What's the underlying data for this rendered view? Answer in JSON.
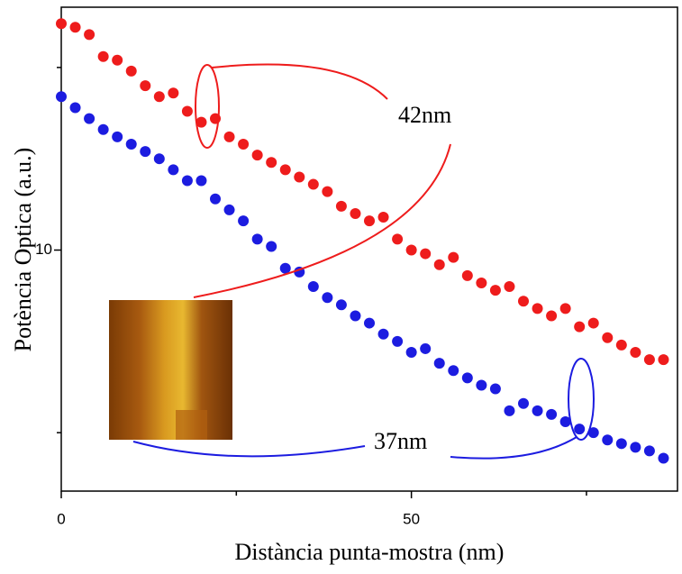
{
  "chart_data": {
    "type": "scatter",
    "xlabel": "Distància punta-mostra (nm)",
    "ylabel": "Potència Optica (a.u.)",
    "xlim": [
      0,
      88
    ],
    "xticks": [
      0,
      50
    ],
    "xminor_ticks": [
      25,
      75
    ],
    "ylim": [
      3.4,
      16.65
    ],
    "yticks": [
      10
    ],
    "yminor_ticks": [
      5,
      15
    ],
    "annotations": [
      "42nm",
      "37nm"
    ],
    "series": [
      {
        "name": "42nm",
        "color": "#ee1c1c",
        "x": [
          0,
          2,
          4,
          6,
          8,
          10,
          12,
          14,
          16,
          18,
          20,
          22,
          24,
          26,
          28,
          30,
          32,
          34,
          36,
          38,
          40,
          42,
          44,
          46,
          48,
          50,
          52,
          54,
          56,
          58,
          60,
          62,
          64,
          66,
          68,
          70,
          72,
          74,
          76,
          78,
          80,
          82,
          84,
          86
        ],
        "values": [
          16.2,
          16.1,
          15.9,
          15.3,
          15.2,
          14.9,
          14.5,
          14.2,
          14.3,
          13.8,
          13.5,
          13.6,
          13.1,
          12.9,
          12.6,
          12.4,
          12.2,
          12.0,
          11.8,
          11.6,
          11.2,
          11.0,
          10.8,
          10.9,
          10.3,
          10.0,
          9.9,
          9.6,
          9.8,
          9.3,
          9.1,
          8.9,
          9.0,
          8.6,
          8.4,
          8.2,
          8.4,
          7.9,
          8.0,
          7.6,
          7.4,
          7.2,
          7.0,
          7.0
        ]
      },
      {
        "name": "37nm",
        "color": "#1c1ce0",
        "x": [
          0,
          2,
          4,
          6,
          8,
          10,
          12,
          14,
          16,
          18,
          20,
          22,
          24,
          26,
          28,
          30,
          32,
          34,
          36,
          38,
          40,
          42,
          44,
          46,
          48,
          50,
          52,
          54,
          56,
          58,
          60,
          62,
          64,
          66,
          68,
          70,
          72,
          74,
          76,
          78,
          80,
          82,
          84,
          86
        ],
        "values": [
          14.2,
          13.9,
          13.6,
          13.3,
          13.1,
          12.9,
          12.7,
          12.5,
          12.2,
          11.9,
          11.9,
          11.4,
          11.1,
          10.8,
          10.3,
          10.1,
          9.5,
          9.4,
          9.0,
          8.7,
          8.5,
          8.2,
          8.0,
          7.7,
          7.5,
          7.2,
          7.3,
          6.9,
          6.7,
          6.5,
          6.3,
          6.2,
          5.6,
          5.8,
          5.6,
          5.5,
          5.3,
          5.1,
          5.0,
          4.8,
          4.7,
          4.6,
          4.5,
          4.3
        ]
      }
    ]
  }
}
